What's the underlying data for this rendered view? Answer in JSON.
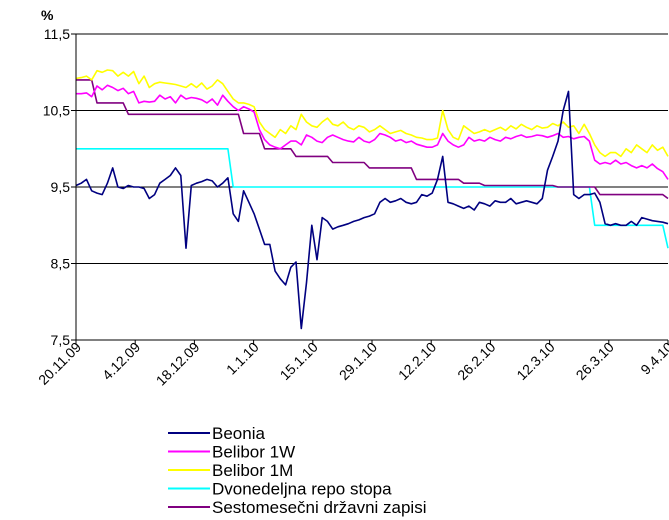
{
  "chart_data": {
    "type": "line",
    "ylabel": "%",
    "ylim": [
      7.5,
      11.5
    ],
    "yticks": [
      "7,5",
      "8,5",
      "9,5",
      "10,5",
      "11,5"
    ],
    "ytick_values": [
      7.5,
      8.5,
      9.5,
      10.5,
      11.5
    ],
    "xticks": [
      "20.11.09",
      "4.12.09",
      "18.12.09",
      "1.1.10",
      "15.1.10",
      "29.1.10",
      "12.2.10",
      "26.2.10",
      "12.3.10",
      "26.3.10",
      "9.4.10"
    ],
    "grid": "horizontal",
    "legend_position": "bottom",
    "series": [
      {
        "name": "Beonia",
        "color": "#000080",
        "values": [
          9.52,
          9.55,
          9.6,
          9.45,
          9.42,
          9.4,
          9.55,
          9.75,
          9.5,
          9.48,
          9.52,
          9.5,
          9.5,
          9.48,
          9.35,
          9.4,
          9.55,
          9.6,
          9.65,
          9.75,
          9.65,
          8.7,
          9.52,
          9.55,
          9.57,
          9.6,
          9.58,
          9.5,
          9.55,
          9.62,
          9.15,
          9.05,
          9.45,
          9.3,
          9.15,
          8.95,
          8.75,
          8.75,
          8.4,
          8.3,
          8.22,
          8.45,
          8.52,
          7.65,
          8.25,
          9.0,
          8.55,
          9.1,
          9.05,
          8.95,
          8.98,
          9.0,
          9.02,
          9.05,
          9.07,
          9.1,
          9.12,
          9.15,
          9.3,
          9.35,
          9.3,
          9.32,
          9.35,
          9.3,
          9.28,
          9.3,
          9.4,
          9.38,
          9.42,
          9.6,
          9.9,
          9.3,
          9.28,
          9.25,
          9.22,
          9.25,
          9.2,
          9.3,
          9.28,
          9.25,
          9.32,
          9.3,
          9.3,
          9.35,
          9.28,
          9.3,
          9.32,
          9.3,
          9.28,
          9.35,
          9.72,
          9.9,
          10.1,
          10.5,
          10.75,
          9.4,
          9.35,
          9.4,
          9.4,
          9.42,
          9.3,
          9.02,
          9.0,
          9.02,
          9.0,
          9.0,
          9.05,
          9.0,
          9.1,
          9.08,
          9.06,
          9.05,
          9.04,
          9.02
        ]
      },
      {
        "name": "Belibor 1W",
        "color": "#ff00ff",
        "values": [
          10.72,
          10.72,
          10.73,
          10.68,
          10.82,
          10.77,
          10.83,
          10.8,
          10.76,
          10.79,
          10.72,
          10.75,
          10.6,
          10.62,
          10.61,
          10.62,
          10.7,
          10.65,
          10.68,
          10.6,
          10.7,
          10.65,
          10.67,
          10.66,
          10.64,
          10.6,
          10.65,
          10.57,
          10.7,
          10.62,
          10.55,
          10.5,
          10.55,
          10.52,
          10.48,
          10.25,
          10.12,
          10.05,
          10.02,
          10.0,
          10.05,
          10.1,
          10.1,
          10.05,
          10.18,
          10.15,
          10.1,
          10.08,
          10.15,
          10.18,
          10.15,
          10.12,
          10.1,
          10.09,
          10.15,
          10.1,
          10.08,
          10.12,
          10.2,
          10.18,
          10.15,
          10.1,
          10.12,
          10.08,
          10.1,
          10.06,
          10.04,
          10.02,
          10.02,
          10.05,
          10.2,
          10.1,
          10.05,
          10.02,
          10.05,
          10.15,
          10.1,
          10.12,
          10.1,
          10.15,
          10.12,
          10.1,
          10.15,
          10.13,
          10.16,
          10.18,
          10.15,
          10.16,
          10.18,
          10.17,
          10.15,
          10.17,
          10.2,
          10.15,
          10.16,
          10.13,
          10.15,
          10.16,
          10.1,
          9.85,
          9.8,
          9.82,
          9.8,
          9.85,
          9.8,
          9.82,
          9.78,
          9.75,
          9.78,
          9.75,
          9.8,
          9.74,
          9.7,
          9.6
        ]
      },
      {
        "name": "Belibor 1M",
        "color": "#ffff00",
        "values": [
          10.92,
          10.93,
          10.95,
          10.9,
          11.02,
          11.0,
          11.03,
          11.02,
          10.95,
          11.0,
          10.95,
          11.01,
          10.85,
          10.95,
          10.8,
          10.85,
          10.87,
          10.86,
          10.85,
          10.84,
          10.82,
          10.8,
          10.85,
          10.8,
          10.86,
          10.78,
          10.82,
          10.9,
          10.85,
          10.75,
          10.65,
          10.6,
          10.6,
          10.58,
          10.55,
          10.35,
          10.25,
          10.2,
          10.15,
          10.25,
          10.2,
          10.3,
          10.25,
          10.45,
          10.35,
          10.3,
          10.28,
          10.35,
          10.4,
          10.32,
          10.3,
          10.35,
          10.28,
          10.25,
          10.3,
          10.28,
          10.22,
          10.25,
          10.3,
          10.25,
          10.2,
          10.22,
          10.24,
          10.2,
          10.18,
          10.15,
          10.14,
          10.12,
          10.12,
          10.14,
          10.5,
          10.25,
          10.15,
          10.12,
          10.3,
          10.25,
          10.2,
          10.22,
          10.25,
          10.22,
          10.25,
          10.28,
          10.24,
          10.3,
          10.26,
          10.32,
          10.28,
          10.25,
          10.3,
          10.27,
          10.28,
          10.33,
          10.3,
          10.35,
          10.28,
          10.3,
          10.2,
          10.32,
          10.2,
          10.05,
          9.95,
          9.9,
          9.95,
          9.95,
          9.9,
          10.0,
          9.95,
          10.05,
          10.0,
          9.95,
          10.05,
          9.98,
          10.02,
          9.9
        ]
      },
      {
        "name": "Dvonedeljna repo stopa",
        "color": "#00ffff",
        "values": [
          10.0,
          10.0,
          10.0,
          10.0,
          10.0,
          10.0,
          10.0,
          10.0,
          10.0,
          10.0,
          10.0,
          10.0,
          10.0,
          10.0,
          10.0,
          10.0,
          10.0,
          10.0,
          10.0,
          10.0,
          10.0,
          10.0,
          10.0,
          10.0,
          10.0,
          10.0,
          10.0,
          10.0,
          10.0,
          10.0,
          9.5,
          9.5,
          9.5,
          9.5,
          9.5,
          9.5,
          9.5,
          9.5,
          9.5,
          9.5,
          9.5,
          9.5,
          9.5,
          9.5,
          9.5,
          9.5,
          9.5,
          9.5,
          9.5,
          9.5,
          9.5,
          9.5,
          9.5,
          9.5,
          9.5,
          9.5,
          9.5,
          9.5,
          9.5,
          9.5,
          9.5,
          9.5,
          9.5,
          9.5,
          9.5,
          9.5,
          9.5,
          9.5,
          9.5,
          9.5,
          9.5,
          9.5,
          9.5,
          9.5,
          9.5,
          9.5,
          9.5,
          9.5,
          9.5,
          9.5,
          9.5,
          9.5,
          9.5,
          9.5,
          9.5,
          9.5,
          9.5,
          9.5,
          9.5,
          9.5,
          9.5,
          9.5,
          9.5,
          9.5,
          9.5,
          9.5,
          9.5,
          9.5,
          9.5,
          9.0,
          9.0,
          9.0,
          9.0,
          9.0,
          9.0,
          9.0,
          9.0,
          9.0,
          9.0,
          9.0,
          9.0,
          9.0,
          9.0,
          8.7
        ]
      },
      {
        "name": "Sestomesečni državni zapisi",
        "color": "#800080",
        "values": [
          10.9,
          10.9,
          10.9,
          10.9,
          10.6,
          10.6,
          10.6,
          10.6,
          10.6,
          10.6,
          10.45,
          10.45,
          10.45,
          10.45,
          10.45,
          10.45,
          10.45,
          10.45,
          10.45,
          10.45,
          10.45,
          10.45,
          10.45,
          10.45,
          10.45,
          10.45,
          10.45,
          10.45,
          10.45,
          10.45,
          10.45,
          10.45,
          10.2,
          10.2,
          10.2,
          10.2,
          10.0,
          10.0,
          10.0,
          10.0,
          10.0,
          10.0,
          9.9,
          9.9,
          9.9,
          9.9,
          9.9,
          9.9,
          9.9,
          9.82,
          9.82,
          9.82,
          9.82,
          9.82,
          9.82,
          9.82,
          9.75,
          9.75,
          9.75,
          9.75,
          9.75,
          9.75,
          9.75,
          9.75,
          9.75,
          9.6,
          9.6,
          9.6,
          9.6,
          9.6,
          9.6,
          9.6,
          9.6,
          9.6,
          9.55,
          9.55,
          9.55,
          9.55,
          9.52,
          9.52,
          9.52,
          9.52,
          9.52,
          9.52,
          9.52,
          9.52,
          9.52,
          9.52,
          9.52,
          9.52,
          9.52,
          9.52,
          9.5,
          9.5,
          9.5,
          9.5,
          9.5,
          9.5,
          9.5,
          9.5,
          9.4,
          9.4,
          9.4,
          9.4,
          9.4,
          9.4,
          9.4,
          9.4,
          9.4,
          9.4,
          9.4,
          9.4,
          9.4,
          9.35
        ]
      }
    ]
  }
}
